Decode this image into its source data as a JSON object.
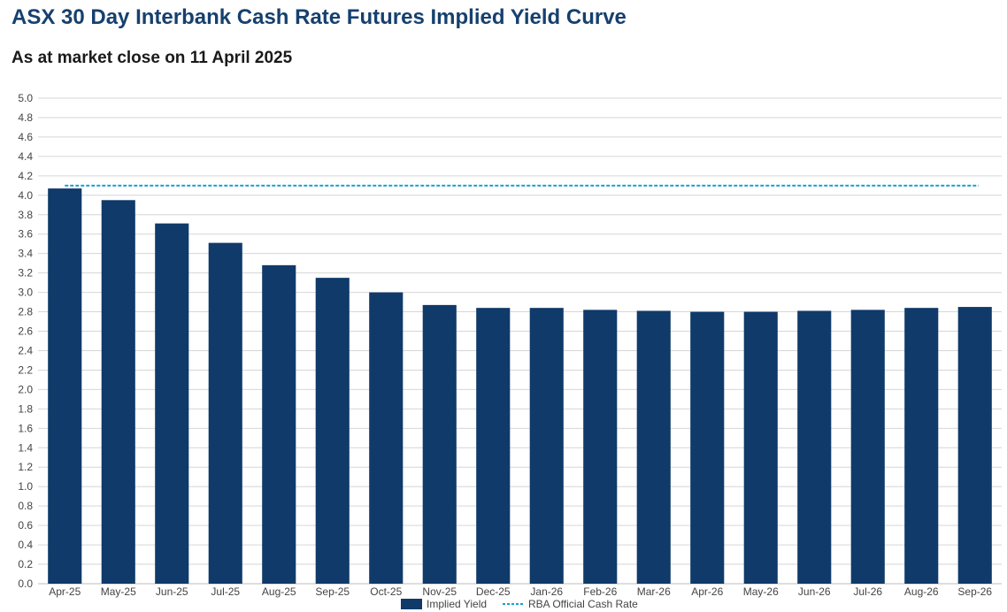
{
  "header": {
    "title": "ASX 30 Day Interbank Cash Rate Futures Implied Yield Curve",
    "subtitle": "As at market close on 11 April 2025"
  },
  "colors": {
    "bar": "#0f3a6a",
    "reference_line": "#1a9fd6",
    "grid": "#d6d6d6",
    "title": "#16406e"
  },
  "chart_data": {
    "type": "bar",
    "title": "ASX 30 Day Interbank Cash Rate Futures Implied Yield Curve",
    "subtitle": "As at market close on 11 April 2025",
    "xlabel": "",
    "ylabel": "",
    "ylim": [
      0,
      5
    ],
    "y_ticks": [
      "0.0",
      "0.2",
      "0.4",
      "0.6",
      "0.8",
      "1.0",
      "1.2",
      "1.4",
      "1.6",
      "1.8",
      "2.0",
      "2.2",
      "2.4",
      "2.6",
      "2.8",
      "3.0",
      "3.2",
      "3.4",
      "3.6",
      "3.8",
      "4.0",
      "4.2",
      "4.4",
      "4.6",
      "4.8",
      "5.0"
    ],
    "grid": true,
    "legend_position": "bottom",
    "categories": [
      "Apr-25",
      "May-25",
      "Jun-25",
      "Jul-25",
      "Aug-25",
      "Sep-25",
      "Oct-25",
      "Nov-25",
      "Dec-25",
      "Jan-26",
      "Feb-26",
      "Mar-26",
      "Apr-26",
      "May-26",
      "Jun-26",
      "Jul-26",
      "Aug-26",
      "Sep-26"
    ],
    "series": [
      {
        "name": "Implied Yield",
        "kind": "bar",
        "values": [
          4.07,
          3.95,
          3.71,
          3.51,
          3.28,
          3.15,
          3.0,
          2.87,
          2.84,
          2.84,
          2.82,
          2.81,
          2.8,
          2.8,
          2.81,
          2.82,
          2.84,
          2.85
        ]
      },
      {
        "name": "RBA Official Cash Rate",
        "kind": "dashed-line",
        "value": 4.1
      }
    ]
  }
}
